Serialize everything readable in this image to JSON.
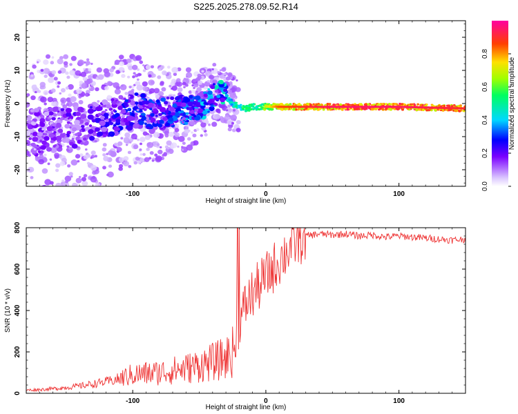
{
  "chart_data": [
    {
      "type": "heatmap",
      "title": "S225.2025.278.09.52.R14",
      "xlabel": "Height of straight line (km)",
      "ylabel": "Frequency (Hz)",
      "xlim": [
        -180,
        150
      ],
      "ylim": [
        -25,
        25
      ],
      "x_ticks": [
        -100,
        0,
        100
      ],
      "y_ticks": [
        -20,
        -10,
        0,
        10,
        20
      ],
      "colorbar": {
        "label": "Normalized spectral amplitude",
        "range": [
          0,
          1
        ],
        "ticks": [
          "0.0",
          "0.2",
          "0.4",
          "0.6",
          "0.8"
        ]
      },
      "ridge": {
        "description_points_x": [
          -180,
          -160,
          -140,
          -120,
          -100,
          -80,
          -60,
          -45,
          -35,
          -30,
          -25,
          -20,
          -15,
          -10,
          -5,
          0,
          10,
          50,
          100,
          150
        ],
        "frequency_y": [
          -9,
          -8,
          -7,
          -5,
          -2,
          -3,
          -2,
          0,
          4,
          2,
          0,
          -1,
          -1.5,
          -1,
          -1,
          -1,
          -1,
          -1,
          -1,
          -1.5
        ],
        "peak_amplitude": [
          0.15,
          0.2,
          0.2,
          0.25,
          0.3,
          0.3,
          0.35,
          0.4,
          0.45,
          0.45,
          0.5,
          0.55,
          0.6,
          0.6,
          0.65,
          0.7,
          0.85,
          0.95,
          0.95,
          0.9
        ]
      },
      "grid": false
    },
    {
      "type": "line",
      "xlabel": "Height of straight line (km)",
      "ylabel": "SNR (10 * v/v)",
      "xlim": [
        -180,
        150
      ],
      "ylim": [
        0,
        800
      ],
      "x_ticks": [
        -100,
        0,
        100
      ],
      "y_ticks": [
        0,
        200,
        400,
        600,
        800
      ],
      "color": "#ee3333",
      "series": [
        {
          "x": [
            -180,
            -170,
            -160,
            -150,
            -140,
            -130,
            -120,
            -110,
            -100,
            -90,
            -80,
            -70,
            -60,
            -50,
            -40,
            -30,
            -25,
            -22,
            -20,
            -15,
            -10,
            -5,
            0,
            5,
            10,
            15,
            20,
            25,
            30,
            40,
            50,
            60,
            70,
            80,
            90,
            100,
            110,
            120,
            130,
            140,
            150
          ],
          "y": [
            15,
            18,
            22,
            28,
            35,
            45,
            55,
            70,
            90,
            95,
            100,
            110,
            120,
            135,
            150,
            170,
            200,
            260,
            330,
            430,
            480,
            520,
            560,
            600,
            640,
            680,
            720,
            740,
            760,
            770,
            765,
            770,
            760,
            765,
            755,
            760,
            755,
            750,
            745,
            740,
            745
          ]
        }
      ],
      "grid": false
    }
  ]
}
